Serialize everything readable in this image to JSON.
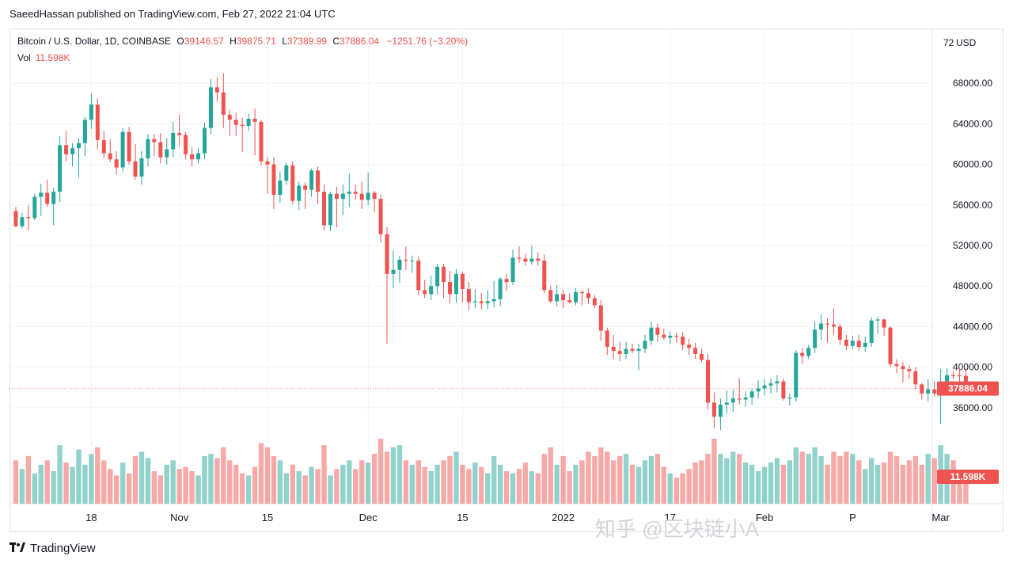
{
  "caption": "SaeedHassan published on TradingView.com, Feb 27, 2022 21:04 UTC",
  "legend": {
    "symbol": "Bitcoin / U.S. Dollar, 1D, COINBASE",
    "o_label": "O",
    "o_value": "39146.57",
    "h_label": "H",
    "h_value": "39875.71",
    "l_label": "L",
    "l_value": "37389.99",
    "c_label": "C",
    "c_value": "37886.04",
    "change": "−1251.76 (−3.20%)",
    "vol_label": "Vol",
    "vol_value": "11.598K"
  },
  "currency_label": "USD",
  "footer_brand": "TradingView",
  "watermark": "知乎 @区块链小A",
  "colors": {
    "up": "#26a69a",
    "down": "#ef5350",
    "grid": "#f0f3fa",
    "price_line": "#ef5350"
  },
  "chart_data": {
    "type": "candlestick",
    "title": "",
    "ylim": [
      32000,
      72000
    ],
    "y_ticks": [
      36000,
      40000,
      44000,
      48000,
      52000,
      56000,
      60000,
      64000,
      68000
    ],
    "y_tick_labels": [
      "36000.00",
      "40000.00",
      "44000.00",
      "48000.00",
      "52000.00",
      "56000.00",
      "60000.00",
      "64000.00",
      "68000.00"
    ],
    "y_top_label": "72",
    "x_ticks": [
      {
        "label": "18",
        "index": 12
      },
      {
        "label": "Nov",
        "index": 26
      },
      {
        "label": "15",
        "index": 40
      },
      {
        "label": "Dec",
        "index": 56
      },
      {
        "label": "15",
        "index": 71
      },
      {
        "label": "2022",
        "index": 87
      },
      {
        "label": "17",
        "index": 104
      },
      {
        "label": "Feb",
        "index": 119
      },
      {
        "label": "P",
        "index": 133
      },
      {
        "label": "Mar",
        "index": 147
      }
    ],
    "last_price": 37886.04,
    "last_price_label": "37886.04",
    "last_volume_label": "11.598K",
    "volume_max": 30000,
    "candles": [
      [
        55400,
        55800,
        53800,
        53900,
        20000
      ],
      [
        53900,
        55200,
        53700,
        54800,
        16000
      ],
      [
        54800,
        56000,
        53500,
        54700,
        22000
      ],
      [
        54700,
        57100,
        54500,
        56800,
        14000
      ],
      [
        56800,
        58100,
        54900,
        57200,
        18000
      ],
      [
        57200,
        58500,
        55800,
        56100,
        20000
      ],
      [
        56100,
        57700,
        54000,
        57300,
        15000
      ],
      [
        57300,
        62800,
        56300,
        61900,
        27000
      ],
      [
        61900,
        63300,
        60300,
        61000,
        19000
      ],
      [
        61000,
        62100,
        59800,
        61600,
        17000
      ],
      [
        61600,
        62600,
        58700,
        62100,
        25000
      ],
      [
        62100,
        64700,
        60800,
        64400,
        18000
      ],
      [
        64400,
        67000,
        63500,
        65900,
        23000
      ],
      [
        65900,
        66500,
        61500,
        62400,
        26000
      ],
      [
        62400,
        63300,
        60600,
        61100,
        20000
      ],
      [
        61100,
        62500,
        60200,
        60500,
        16000
      ],
      [
        60500,
        61300,
        59000,
        59700,
        13000
      ],
      [
        59700,
        63600,
        59300,
        63200,
        19000
      ],
      [
        63200,
        63700,
        60000,
        60300,
        14000
      ],
      [
        60300,
        62000,
        58500,
        58800,
        22000
      ],
      [
        58800,
        61300,
        58000,
        60600,
        24000
      ],
      [
        60600,
        63000,
        59800,
        62500,
        21000
      ],
      [
        62500,
        63000,
        60800,
        62200,
        15000
      ],
      [
        62200,
        63100,
        60100,
        60700,
        13000
      ],
      [
        60700,
        62600,
        60000,
        61500,
        18000
      ],
      [
        61500,
        64200,
        60700,
        63100,
        20000
      ],
      [
        63100,
        64900,
        61800,
        62900,
        16000
      ],
      [
        62900,
        63200,
        60500,
        61000,
        17000
      ],
      [
        61000,
        61700,
        59800,
        60500,
        15000
      ],
      [
        60500,
        61600,
        60100,
        61100,
        13000
      ],
      [
        61100,
        64100,
        60500,
        63600,
        22000
      ],
      [
        63600,
        68400,
        63000,
        67600,
        23000
      ],
      [
        67600,
        68600,
        66200,
        67100,
        21000
      ],
      [
        67100,
        69000,
        63600,
        64900,
        26000
      ],
      [
        64900,
        65400,
        62800,
        64400,
        20000
      ],
      [
        64400,
        65100,
        62800,
        63900,
        18000
      ],
      [
        63900,
        64600,
        61200,
        63800,
        14000
      ],
      [
        63800,
        65000,
        63300,
        64500,
        13000
      ],
      [
        64500,
        65500,
        60900,
        64200,
        17000
      ],
      [
        64200,
        64400,
        59900,
        60300,
        28000
      ],
      [
        60300,
        60700,
        57100,
        60000,
        26000
      ],
      [
        60000,
        60700,
        55600,
        57000,
        22000
      ],
      [
        57000,
        59300,
        56200,
        58400,
        20000
      ],
      [
        58400,
        60200,
        58000,
        59900,
        14000
      ],
      [
        59900,
        60300,
        56100,
        56400,
        18000
      ],
      [
        56400,
        58300,
        55500,
        57900,
        15000
      ],
      [
        57900,
        58200,
        55600,
        57500,
        13000
      ],
      [
        57500,
        59600,
        56800,
        59400,
        17000
      ],
      [
        59400,
        59800,
        56100,
        57300,
        16000
      ],
      [
        57300,
        58000,
        53500,
        54000,
        27000
      ],
      [
        54000,
        57300,
        53400,
        57100,
        13000
      ],
      [
        57100,
        57800,
        53800,
        56600,
        16000
      ],
      [
        56600,
        58000,
        55000,
        57100,
        18000
      ],
      [
        57100,
        59100,
        55800,
        57300,
        20000
      ],
      [
        57300,
        58000,
        56500,
        57100,
        16000
      ],
      [
        57100,
        58300,
        55600,
        56500,
        20000
      ],
      [
        56500,
        59200,
        56000,
        57200,
        19000
      ],
      [
        57200,
        57400,
        55300,
        56600,
        23000
      ],
      [
        56600,
        57000,
        52300,
        53100,
        30000
      ],
      [
        53100,
        53800,
        42300,
        49200,
        24000
      ],
      [
        49200,
        51500,
        47800,
        49600,
        26000
      ],
      [
        49600,
        51000,
        48300,
        50600,
        27000
      ],
      [
        50600,
        51900,
        49600,
        50500,
        20000
      ],
      [
        50500,
        51000,
        49300,
        50500,
        18000
      ],
      [
        50500,
        50900,
        47100,
        47600,
        20000
      ],
      [
        47600,
        48600,
        46800,
        47200,
        17000
      ],
      [
        47200,
        49000,
        46600,
        48000,
        15000
      ],
      [
        48000,
        50200,
        47200,
        49900,
        18000
      ],
      [
        49900,
        50200,
        46800,
        48400,
        20000
      ],
      [
        48400,
        49500,
        46300,
        47200,
        22000
      ],
      [
        47200,
        49700,
        46300,
        49200,
        24000
      ],
      [
        49200,
        49400,
        46400,
        47700,
        18000
      ],
      [
        47700,
        48400,
        45600,
        46400,
        16000
      ],
      [
        46400,
        47700,
        45800,
        46500,
        19000
      ],
      [
        46500,
        47300,
        45700,
        46300,
        17000
      ],
      [
        46300,
        47600,
        45700,
        46500,
        14000
      ],
      [
        46500,
        48500,
        45900,
        46700,
        22000
      ],
      [
        46700,
        48900,
        46000,
        48700,
        18000
      ],
      [
        48700,
        49200,
        47500,
        48400,
        15000
      ],
      [
        48400,
        51600,
        48100,
        50800,
        14000
      ],
      [
        50800,
        51900,
        50300,
        50700,
        16000
      ],
      [
        50700,
        51200,
        50000,
        50400,
        19000
      ],
      [
        50400,
        52000,
        50100,
        50700,
        15000
      ],
      [
        50700,
        51300,
        50000,
        50500,
        14000
      ],
      [
        50500,
        51100,
        47300,
        47600,
        23000
      ],
      [
        47600,
        48000,
        46300,
        46500,
        26000
      ],
      [
        46500,
        48100,
        46000,
        47200,
        18000
      ],
      [
        47200,
        47600,
        45800,
        46600,
        22000
      ],
      [
        46600,
        47300,
        46300,
        46400,
        15000
      ],
      [
        46400,
        47800,
        46100,
        47400,
        18000
      ],
      [
        47400,
        47600,
        46100,
        47300,
        20000
      ],
      [
        47300,
        47800,
        46200,
        46800,
        24000
      ],
      [
        46800,
        47100,
        45800,
        46100,
        22000
      ],
      [
        46100,
        46600,
        42600,
        43600,
        26000
      ],
      [
        43600,
        43900,
        41200,
        42000,
        24000
      ],
      [
        42000,
        43200,
        40800,
        41600,
        20000
      ],
      [
        41600,
        42500,
        40600,
        41300,
        22000
      ],
      [
        41300,
        42500,
        40800,
        41800,
        23000
      ],
      [
        41800,
        42300,
        41400,
        41600,
        18000
      ],
      [
        41600,
        42300,
        39700,
        41800,
        17000
      ],
      [
        41800,
        43200,
        41400,
        42600,
        20000
      ],
      [
        42600,
        44500,
        42200,
        43900,
        22000
      ],
      [
        43900,
        44300,
        42500,
        43200,
        23000
      ],
      [
        43200,
        43800,
        42700,
        42900,
        17000
      ],
      [
        42900,
        43500,
        42300,
        43100,
        14000
      ],
      [
        43100,
        43400,
        42400,
        43000,
        12000
      ],
      [
        43000,
        43500,
        41700,
        42200,
        14000
      ],
      [
        42200,
        42800,
        41200,
        41900,
        16000
      ],
      [
        41900,
        42400,
        40800,
        41300,
        19000
      ],
      [
        41300,
        41800,
        40500,
        40700,
        20000
      ],
      [
        40700,
        41300,
        35800,
        36500,
        23000
      ],
      [
        36500,
        37500,
        34000,
        35100,
        30000
      ],
      [
        35100,
        36900,
        33800,
        36300,
        23000
      ],
      [
        36300,
        37700,
        35400,
        36500,
        21000
      ],
      [
        36500,
        37800,
        35600,
        36900,
        24000
      ],
      [
        36900,
        38900,
        36300,
        36800,
        23000
      ],
      [
        36800,
        37600,
        36100,
        37000,
        19000
      ],
      [
        37000,
        37900,
        36300,
        37600,
        18000
      ],
      [
        37600,
        38700,
        36900,
        37900,
        15000
      ],
      [
        37900,
        38800,
        37200,
        38200,
        17000
      ],
      [
        38200,
        38900,
        37400,
        38400,
        19000
      ],
      [
        38400,
        39200,
        37500,
        38600,
        21000
      ],
      [
        38600,
        38900,
        36700,
        36900,
        18000
      ],
      [
        36900,
        37400,
        36200,
        37000,
        20000
      ],
      [
        37000,
        41700,
        36600,
        41400,
        26000
      ],
      [
        41400,
        41900,
        40300,
        41100,
        24000
      ],
      [
        41100,
        42200,
        40800,
        41900,
        23000
      ],
      [
        41900,
        44500,
        41400,
        43700,
        26000
      ],
      [
        43700,
        45200,
        42700,
        44300,
        22000
      ],
      [
        44300,
        44800,
        42400,
        44200,
        18000
      ],
      [
        44200,
        45800,
        43200,
        44000,
        24000
      ],
      [
        44000,
        44300,
        42200,
        42700,
        22000
      ],
      [
        42700,
        43200,
        41700,
        42100,
        24000
      ],
      [
        42100,
        43100,
        41800,
        42600,
        23000
      ],
      [
        42600,
        43200,
        41600,
        42000,
        20000
      ],
      [
        42000,
        43000,
        41500,
        42400,
        16000
      ],
      [
        42400,
        44900,
        42000,
        44600,
        21000
      ],
      [
        44600,
        45000,
        43300,
        44700,
        18000
      ],
      [
        44700,
        44800,
        43100,
        43900,
        19000
      ],
      [
        43900,
        44000,
        40000,
        40300,
        24000
      ],
      [
        40300,
        40800,
        39400,
        40100,
        22000
      ],
      [
        40100,
        40500,
        38500,
        39800,
        18000
      ],
      [
        39800,
        40200,
        38800,
        39600,
        20000
      ],
      [
        39600,
        40000,
        37800,
        38300,
        22000
      ],
      [
        38300,
        38400,
        36800,
        37400,
        18000
      ],
      [
        37400,
        38800,
        36600,
        37800,
        23000
      ],
      [
        37800,
        38600,
        37100,
        37400,
        21000
      ],
      [
        37400,
        39800,
        34400,
        38300,
        27000
      ],
      [
        38300,
        39900,
        37300,
        39200,
        23000
      ],
      [
        39200,
        39600,
        38800,
        39100,
        20000
      ],
      [
        39200,
        39900,
        38600,
        39100,
        15000
      ],
      [
        39146.57,
        39875.71,
        37389.99,
        37886.04,
        11598
      ]
    ]
  }
}
